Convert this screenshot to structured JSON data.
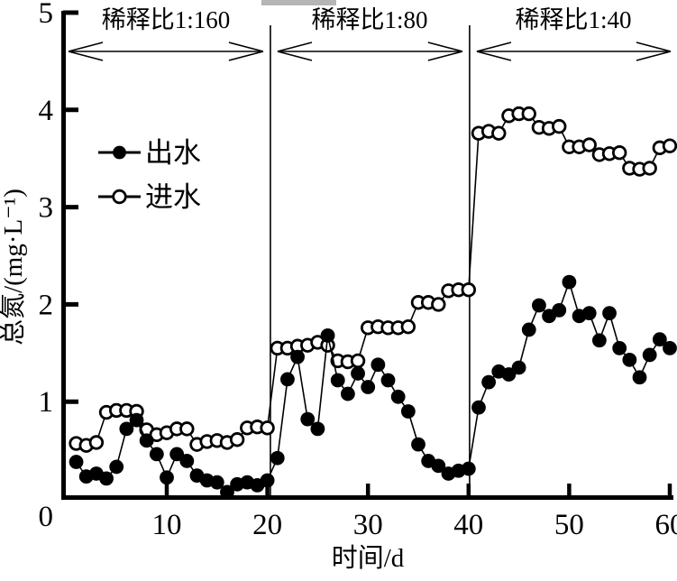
{
  "figure": {
    "colors": {
      "ink": "#000000",
      "background": "#ffffff",
      "scan_artifact": "#b5b5b5"
    }
  },
  "chart_data": {
    "type": "line",
    "title": "",
    "xlabel": "时间/d",
    "ylabel": "总氮/(mg·L⁻¹)",
    "xlim": [
      0,
      61
    ],
    "ylim": [
      0,
      5
    ],
    "x_ticks": [
      10,
      20,
      30,
      40,
      50,
      60
    ],
    "y_ticks": [
      0,
      1,
      2,
      3,
      4,
      5
    ],
    "grid": false,
    "legend_position": "upper-left-inside",
    "dividers_x": [
      20.3,
      40.1
    ],
    "regions": [
      {
        "label": "稀释比1:160",
        "day_range": [
          1,
          20
        ]
      },
      {
        "label": "稀释比1:80",
        "day_range": [
          21,
          40
        ]
      },
      {
        "label": "稀释比1:40",
        "day_range": [
          41,
          60
        ]
      }
    ],
    "legend": [
      {
        "label": "出水",
        "marker": "filled-circle"
      },
      {
        "label": "进水",
        "marker": "open-circle"
      }
    ],
    "x": [
      1,
      2,
      3,
      4,
      5,
      6,
      7,
      8,
      9,
      10,
      11,
      12,
      13,
      14,
      15,
      16,
      17,
      18,
      19,
      20,
      21,
      22,
      23,
      24,
      25,
      26,
      27,
      28,
      29,
      30,
      31,
      32,
      33,
      34,
      35,
      36,
      37,
      38,
      39,
      40,
      41,
      42,
      43,
      44,
      45,
      46,
      47,
      48,
      49,
      50,
      51,
      52,
      53,
      54,
      55,
      56,
      57,
      58,
      59,
      60
    ],
    "series": [
      {
        "name": "出水",
        "marker": "filled-circle",
        "values": [
          0.38,
          0.23,
          0.26,
          0.21,
          0.33,
          0.72,
          0.81,
          0.6,
          0.46,
          0.22,
          0.46,
          0.39,
          0.24,
          0.19,
          0.17,
          0.07,
          0.15,
          0.17,
          0.14,
          0.19,
          0.42,
          1.23,
          1.46,
          0.82,
          0.72,
          1.68,
          1.22,
          1.08,
          1.29,
          1.15,
          1.38,
          1.22,
          1.05,
          0.9,
          0.56,
          0.39,
          0.34,
          0.26,
          0.29,
          0.31,
          0.94,
          1.2,
          1.31,
          1.28,
          1.35,
          1.74,
          1.99,
          1.88,
          1.94,
          2.23,
          1.88,
          1.91,
          1.63,
          1.91,
          1.55,
          1.43,
          1.25,
          1.48,
          1.64,
          1.55
        ]
      },
      {
        "name": "进水",
        "marker": "open-circle",
        "values": [
          0.57,
          0.55,
          0.58,
          0.89,
          0.91,
          0.91,
          0.9,
          0.71,
          0.66,
          0.68,
          0.72,
          0.72,
          0.56,
          0.59,
          0.6,
          0.58,
          0.61,
          0.73,
          0.74,
          0.73,
          1.55,
          1.55,
          1.57,
          1.58,
          1.61,
          1.58,
          1.42,
          1.41,
          1.42,
          1.76,
          1.77,
          1.76,
          1.76,
          1.77,
          2.02,
          2.02,
          2.0,
          2.14,
          2.15,
          2.15,
          3.76,
          3.78,
          3.76,
          3.94,
          3.96,
          3.96,
          3.82,
          3.81,
          3.83,
          3.62,
          3.62,
          3.64,
          3.54,
          3.55,
          3.56,
          3.4,
          3.39,
          3.4,
          3.61,
          3.63
        ]
      }
    ]
  }
}
